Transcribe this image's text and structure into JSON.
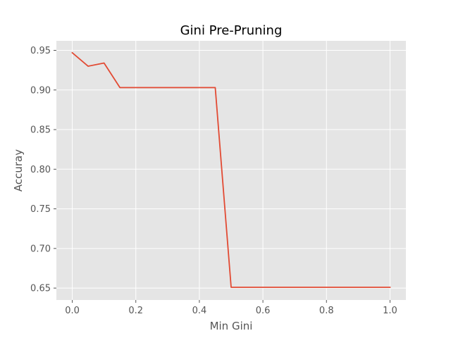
{
  "chart_data": {
    "type": "line",
    "title": "Gini Pre-Pruning",
    "xlabel": "Min Gini",
    "ylabel": "Accuray",
    "xlim": [
      -0.05,
      1.05
    ],
    "ylim": [
      0.635,
      0.962
    ],
    "xticks": [
      0.0,
      0.2,
      0.4,
      0.6,
      0.8,
      1.0
    ],
    "xtick_labels": [
      "0.0",
      "0.2",
      "0.4",
      "0.6",
      "0.8",
      "1.0"
    ],
    "yticks": [
      0.65,
      0.7,
      0.75,
      0.8,
      0.85,
      0.9,
      0.95
    ],
    "ytick_labels": [
      "0.65",
      "0.70",
      "0.75",
      "0.80",
      "0.85",
      "0.90",
      "0.95"
    ],
    "grid": true,
    "series": [
      {
        "color": "#e24a33",
        "x": [
          0.0,
          0.05,
          0.1,
          0.15,
          0.2,
          0.25,
          0.3,
          0.35,
          0.4,
          0.45,
          0.5,
          0.55,
          0.6,
          0.65,
          0.7,
          0.75,
          0.8,
          0.85,
          0.9,
          0.95,
          1.0
        ],
        "y": [
          0.947,
          0.93,
          0.934,
          0.903,
          0.903,
          0.903,
          0.903,
          0.903,
          0.903,
          0.903,
          0.651,
          0.651,
          0.651,
          0.651,
          0.651,
          0.651,
          0.651,
          0.651,
          0.651,
          0.651,
          0.651
        ]
      }
    ]
  },
  "style": {
    "plot_background": "#e5e5e5",
    "grid_color": "#ffffff"
  }
}
